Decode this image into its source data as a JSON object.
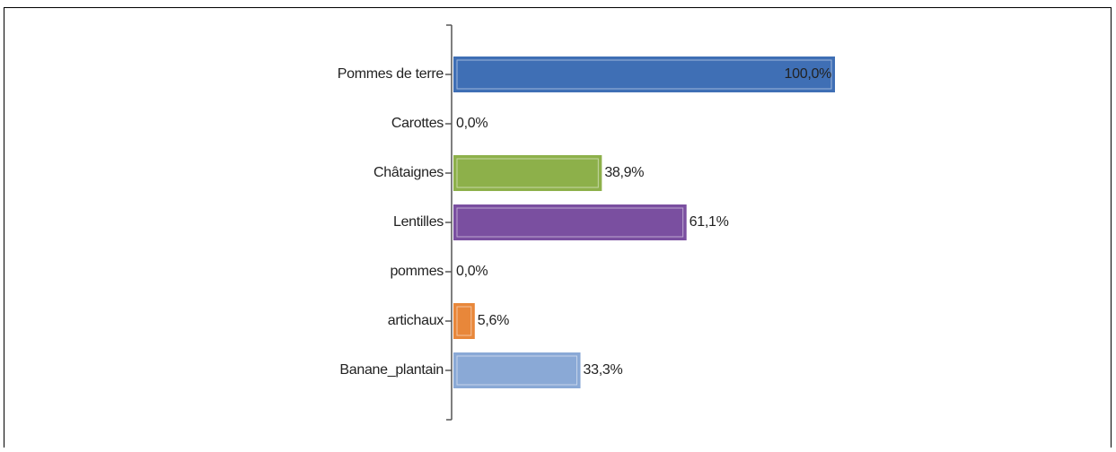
{
  "chart_data": {
    "type": "barh",
    "categories": [
      "Pommes de terre",
      "Carottes",
      "Châtaignes",
      "Lentilles",
      "pommes",
      "artichaux",
      "Banane_plantain"
    ],
    "values": [
      100,
      0,
      38.9,
      61.1,
      0,
      5.6,
      33.3
    ],
    "value_labels": [
      "100,0%",
      "0,0%",
      "38,9%",
      "61,1%",
      "0,0%",
      "5,6%",
      "33,3%"
    ],
    "colors": [
      "#3f6fb5",
      "#c0504d",
      "#8db04a",
      "#7a4fa0",
      "#4bacc6",
      "#e8873a",
      "#8aa9d6"
    ]
  }
}
